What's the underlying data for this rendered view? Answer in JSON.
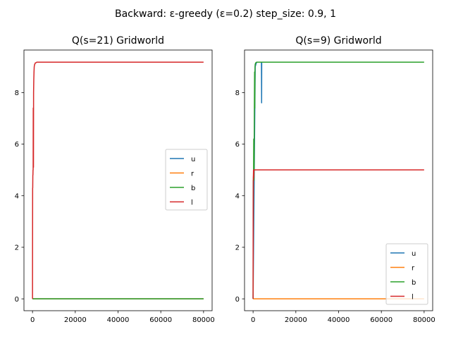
{
  "suptitle": "Backward: ε-greedy (ε=0.2) step_size: 0.9, 1",
  "colors": {
    "u": "#1f77b4",
    "r": "#ff7f0e",
    "b": "#2ca02c",
    "l": "#d62728"
  },
  "chart_data": [
    {
      "type": "line",
      "title": "Q(s=21) Gridworld",
      "xlabel": "",
      "ylabel": "",
      "xlim": [
        -4000,
        84000
      ],
      "ylim": [
        -0.46,
        9.65
      ],
      "xticks": [
        0,
        20000,
        40000,
        60000,
        80000
      ],
      "yticks": [
        0,
        2,
        4,
        6,
        8
      ],
      "legend_position": "center-right",
      "series": [
        {
          "name": "u",
          "color": "#1f77b4",
          "x": [
            0,
            80000
          ],
          "y": [
            0,
            0
          ]
        },
        {
          "name": "r",
          "color": "#ff7f0e",
          "x": [
            0,
            80000
          ],
          "y": [
            0,
            0
          ]
        },
        {
          "name": "b",
          "color": "#2ca02c",
          "x": [
            0,
            80000
          ],
          "y": [
            0,
            0
          ]
        },
        {
          "name": "l",
          "color": "#d62728",
          "x": [
            0,
            20,
            40,
            60,
            100,
            150,
            200,
            250,
            300,
            350,
            400,
            450,
            500,
            600,
            700,
            800,
            900,
            1000,
            1100,
            1300,
            1500,
            2000,
            3000,
            10000,
            40000,
            80000
          ],
          "y": [
            0,
            2.0,
            3.0,
            4.3,
            4.3,
            4.8,
            4.8,
            5.0,
            5.0,
            7.4,
            7.4,
            5.1,
            8.0,
            8.5,
            8.8,
            9.0,
            9.05,
            9.1,
            9.1,
            9.15,
            9.15,
            9.18,
            9.18,
            9.18,
            9.18,
            9.18
          ]
        }
      ]
    },
    {
      "type": "line",
      "title": "Q(s=9) Gridworld",
      "xlabel": "",
      "ylabel": "",
      "xlim": [
        -4000,
        84000
      ],
      "ylim": [
        -0.46,
        9.65
      ],
      "xticks": [
        0,
        20000,
        40000,
        60000,
        80000
      ],
      "yticks": [
        0,
        2,
        4,
        6,
        8
      ],
      "legend_position": "lower-right",
      "series": [
        {
          "name": "u",
          "color": "#1f77b4",
          "x": [
            0,
            1000,
            1500,
            2000,
            2500,
            3000,
            3500,
            3800,
            3900,
            4000,
            4050
          ],
          "y": [
            0,
            9.0,
            9.15,
            9.18,
            9.18,
            9.18,
            9.18,
            9.18,
            9.18,
            7.6,
            9.18
          ]
        },
        {
          "name": "r",
          "color": "#ff7f0e",
          "x": [
            0,
            80000
          ],
          "y": [
            0,
            0
          ]
        },
        {
          "name": "b",
          "color": "#2ca02c",
          "x": [
            0,
            100,
            200,
            300,
            400,
            500,
            600,
            700,
            800,
            900,
            1000,
            1200,
            1400,
            1600,
            2000,
            3000,
            10000,
            80000
          ],
          "y": [
            0,
            4.6,
            4.6,
            6.2,
            4.6,
            5.2,
            7.5,
            8.8,
            7.4,
            9.0,
            9.1,
            9.15,
            9.16,
            9.18,
            9.18,
            9.18,
            9.18,
            9.18
          ]
        },
        {
          "name": "l",
          "color": "#d62728",
          "x": [
            0,
            50,
            100,
            150,
            200,
            300,
            400,
            500,
            600,
            1000,
            80000
          ],
          "y": [
            0,
            3.5,
            4.7,
            4.8,
            5.0,
            4.7,
            5.0,
            5.0,
            5.0,
            5.0,
            5.0
          ]
        }
      ]
    }
  ]
}
